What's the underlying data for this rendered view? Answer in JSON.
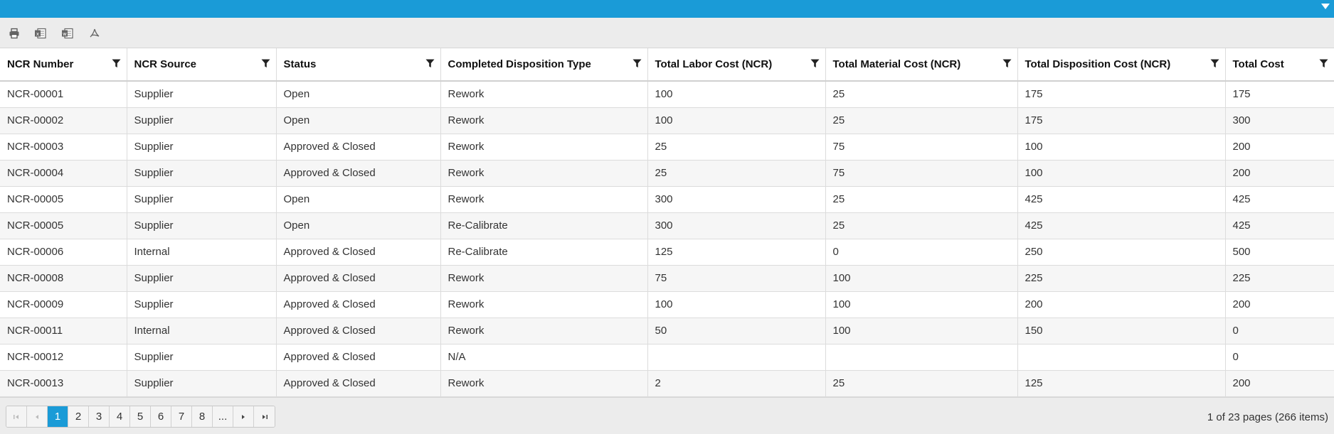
{
  "colors": {
    "accent": "#1a9bd7"
  },
  "toolbar": {
    "buttons": [
      {
        "name": "print-icon"
      },
      {
        "name": "export-excel-icon"
      },
      {
        "name": "export-word-icon"
      },
      {
        "name": "export-pdf-icon"
      }
    ]
  },
  "table": {
    "columns": [
      "NCR Number",
      "NCR Source",
      "Status",
      "Completed Disposition Type",
      "Total Labor Cost (NCR)",
      "Total Material Cost (NCR)",
      "Total Disposition Cost (NCR)",
      "Total Cost"
    ],
    "rows": [
      [
        "NCR-00001",
        "Supplier",
        "Open",
        "Rework",
        "100",
        "25",
        "175",
        "175"
      ],
      [
        "NCR-00002",
        "Supplier",
        "Open",
        "Rework",
        "100",
        "25",
        "175",
        "300"
      ],
      [
        "NCR-00003",
        "Supplier",
        "Approved & Closed",
        "Rework",
        "25",
        "75",
        "100",
        "200"
      ],
      [
        "NCR-00004",
        "Supplier",
        "Approved & Closed",
        "Rework",
        "25",
        "75",
        "100",
        "200"
      ],
      [
        "NCR-00005",
        "Supplier",
        "Open",
        "Rework",
        "300",
        "25",
        "425",
        "425"
      ],
      [
        "NCR-00005",
        "Supplier",
        "Open",
        "Re-Calibrate",
        "300",
        "25",
        "425",
        "425"
      ],
      [
        "NCR-00006",
        "Internal",
        "Approved & Closed",
        "Re-Calibrate",
        "125",
        "0",
        "250",
        "500"
      ],
      [
        "NCR-00008",
        "Supplier",
        "Approved & Closed",
        "Rework",
        "75",
        "100",
        "225",
        "225"
      ],
      [
        "NCR-00009",
        "Supplier",
        "Approved & Closed",
        "Rework",
        "100",
        "100",
        "200",
        "200"
      ],
      [
        "NCR-00011",
        "Internal",
        "Approved & Closed",
        "Rework",
        "50",
        "100",
        "150",
        "0"
      ],
      [
        "NCR-00012",
        "Supplier",
        "Approved & Closed",
        "N/A",
        "",
        "",
        "",
        "0"
      ],
      [
        "NCR-00013",
        "Supplier",
        "Approved & Closed",
        "Rework",
        "2",
        "25",
        "125",
        "200"
      ]
    ]
  },
  "pager": {
    "first_icon": "first-page-icon",
    "prev_icon": "prev-page-icon",
    "pages": [
      "1",
      "2",
      "3",
      "4",
      "5",
      "6",
      "7",
      "8",
      "..."
    ],
    "active_page": "1",
    "next_icon": "next-page-icon",
    "last_icon": "last-page-icon",
    "info": "1 of 23 pages (266 items)"
  }
}
